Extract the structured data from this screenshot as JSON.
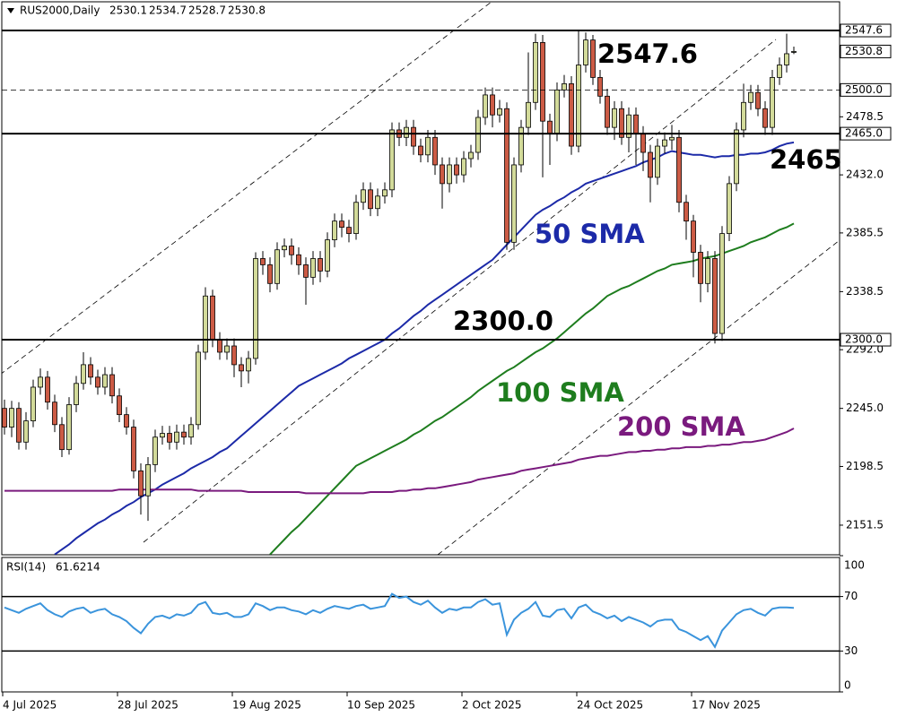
{
  "chart_data": [
    {
      "type": "candlestick",
      "title": "RUS2000,Daily",
      "categories": [
        "4 Jul 2025",
        null,
        null,
        null,
        null,
        null,
        null,
        null,
        null,
        null,
        null,
        null,
        null,
        null,
        null,
        null,
        "28 Jul 2025",
        null,
        null,
        null,
        null,
        null,
        null,
        null,
        null,
        null,
        null,
        null,
        null,
        null,
        null,
        null,
        "19 Aug 2025",
        null,
        null,
        null,
        null,
        null,
        null,
        null,
        null,
        null,
        null,
        null,
        null,
        null,
        null,
        null,
        "10 Sep 2025",
        null,
        null,
        null,
        null,
        null,
        null,
        null,
        null,
        null,
        null,
        null,
        null,
        null,
        null,
        null,
        "2 Oct 2025",
        null,
        null,
        null,
        null,
        null,
        null,
        null,
        null,
        null,
        null,
        null,
        null,
        null,
        null,
        null,
        "24 Oct 2025",
        null,
        null,
        null,
        null,
        null,
        null,
        null,
        null,
        null,
        null,
        null,
        null,
        null,
        null,
        null,
        "17 Nov 2025",
        null,
        null,
        null,
        null,
        null,
        null,
        null,
        null,
        null,
        null,
        null,
        null,
        null,
        null
      ],
      "open": [
        2245,
        2230,
        2245,
        2218,
        2235,
        2262,
        2270,
        2250,
        2232,
        2212,
        2248,
        2265,
        2280,
        2270,
        2262,
        2272,
        2255,
        2240,
        2230,
        2195,
        2175,
        2200,
        2222,
        2225,
        2218,
        2226,
        2222,
        2232,
        2290,
        2335,
        2300,
        2290,
        2295,
        2280,
        2275,
        2285,
        2365,
        2360,
        2345,
        2372,
        2375,
        2368,
        2360,
        2350,
        2365,
        2355,
        2380,
        2395,
        2390,
        2385,
        2410,
        2420,
        2405,
        2415,
        2420,
        2468,
        2462,
        2470,
        2455,
        2448,
        2462,
        2440,
        2425,
        2440,
        2432,
        2445,
        2450,
        2478,
        2496,
        2480,
        2485,
        2378,
        2440,
        2470,
        2490,
        2538,
        2475,
        2465,
        2500,
        2505,
        2455,
        2520,
        2540,
        2510,
        2495,
        2470,
        2485,
        2462,
        2480,
        2465,
        2450,
        2430,
        2455,
        2460,
        2462,
        2410,
        2395,
        2370,
        2345,
        2365,
        2305,
        2385,
        2425,
        2468,
        2490,
        2498,
        2485,
        2470,
        2510,
        2520,
        2530.1
      ],
      "high": [
        2252,
        2251,
        2250,
        2242,
        2268,
        2277,
        2275,
        2256,
        2238,
        2254,
        2271,
        2290,
        2286,
        2276,
        2278,
        2278,
        2261,
        2246,
        2236,
        2201,
        2206,
        2228,
        2231,
        2231,
        2232,
        2232,
        2238,
        2296,
        2342,
        2340,
        2306,
        2301,
        2301,
        2286,
        2291,
        2370,
        2371,
        2366,
        2378,
        2381,
        2381,
        2374,
        2366,
        2371,
        2371,
        2386,
        2401,
        2401,
        2396,
        2416,
        2426,
        2426,
        2421,
        2426,
        2474,
        2474,
        2476,
        2476,
        2461,
        2468,
        2468,
        2446,
        2446,
        2446,
        2451,
        2456,
        2484,
        2502,
        2502,
        2492,
        2490,
        2446,
        2476,
        2530,
        2545,
        2544,
        2481,
        2506,
        2512,
        2511,
        2547.6,
        2546,
        2544,
        2516,
        2501,
        2491,
        2491,
        2486,
        2486,
        2471,
        2456,
        2461,
        2466,
        2472,
        2468,
        2416,
        2400,
        2376,
        2371,
        2371,
        2391,
        2431,
        2474,
        2505,
        2504,
        2504,
        2491,
        2516,
        2526,
        2545,
        2534.7
      ],
      "low": [
        2224,
        2222,
        2212,
        2212,
        2230,
        2256,
        2244,
        2226,
        2206,
        2208,
        2242,
        2260,
        2264,
        2256,
        2256,
        2249,
        2234,
        2224,
        2189,
        2160,
        2155,
        2194,
        2216,
        2212,
        2212,
        2216,
        2216,
        2228,
        2284,
        2294,
        2284,
        2284,
        2270,
        2262,
        2265,
        2280,
        2352,
        2338,
        2340,
        2366,
        2360,
        2352,
        2328,
        2344,
        2346,
        2350,
        2374,
        2382,
        2378,
        2380,
        2404,
        2399,
        2399,
        2409,
        2414,
        2455,
        2455,
        2448,
        2442,
        2442,
        2432,
        2405,
        2418,
        2425,
        2426,
        2438,
        2444,
        2472,
        2470,
        2474,
        2372,
        2372,
        2434,
        2464,
        2484,
        2430,
        2440,
        2459,
        2494,
        2448,
        2450,
        2514,
        2504,
        2489,
        2464,
        2460,
        2456,
        2450,
        2440,
        2435,
        2410,
        2424,
        2449,
        2452,
        2402,
        2380,
        2350,
        2330,
        2338,
        2297,
        2299,
        2379,
        2419,
        2462,
        2484,
        2479,
        2464,
        2464,
        2504,
        2514,
        2528.7
      ],
      "close": [
        2230,
        2245,
        2218,
        2235,
        2262,
        2270,
        2250,
        2232,
        2212,
        2248,
        2265,
        2280,
        2270,
        2262,
        2272,
        2255,
        2240,
        2230,
        2195,
        2175,
        2200,
        2222,
        2225,
        2218,
        2226,
        2222,
        2232,
        2290,
        2335,
        2300,
        2290,
        2295,
        2280,
        2275,
        2285,
        2365,
        2360,
        2345,
        2372,
        2375,
        2368,
        2360,
        2350,
        2365,
        2355,
        2380,
        2395,
        2390,
        2385,
        2410,
        2420,
        2405,
        2415,
        2420,
        2468,
        2462,
        2470,
        2455,
        2448,
        2462,
        2440,
        2425,
        2440,
        2432,
        2445,
        2450,
        2478,
        2496,
        2480,
        2485,
        2378,
        2440,
        2470,
        2490,
        2538,
        2475,
        2465,
        2500,
        2505,
        2455,
        2520,
        2540,
        2510,
        2495,
        2470,
        2485,
        2462,
        2480,
        2465,
        2450,
        2430,
        2455,
        2460,
        2462,
        2410,
        2395,
        2370,
        2345,
        2365,
        2305,
        2385,
        2425,
        2468,
        2490,
        2498,
        2485,
        2470,
        2510,
        2520,
        2529,
        2530.8
      ],
      "up_color": "#d3db9a",
      "down_color": "#cc5b45",
      "series": [
        {
          "name": "50 SMA",
          "color": "#1c2aa8",
          "values": [
            null,
            null,
            null,
            null,
            null,
            null,
            null,
            2128,
            2132,
            2136,
            2141,
            2145,
            2149,
            2153,
            2156,
            2160,
            2163,
            2167,
            2170,
            2174,
            2177,
            2180,
            2184,
            2187,
            2190,
            2193,
            2197,
            2200,
            2203,
            2206,
            2210,
            2213,
            2218,
            2223,
            2228,
            2233,
            2238,
            2243,
            2248,
            2253,
            2258,
            2263,
            2266,
            2269,
            2272,
            2275,
            2278,
            2281,
            2285,
            2288,
            2291,
            2294,
            2297,
            2300,
            2305,
            2309,
            2314,
            2319,
            2323,
            2328,
            2332,
            2336,
            2340,
            2344,
            2348,
            2352,
            2356,
            2360,
            2364,
            2370,
            2376,
            2382,
            2388,
            2394,
            2400,
            2404,
            2407,
            2411,
            2414,
            2418,
            2421,
            2425,
            2427,
            2429,
            2431,
            2433,
            2435,
            2437,
            2439,
            2442,
            2444,
            2446,
            2449,
            2451,
            2450,
            2449,
            2448,
            2448,
            2447,
            2446,
            2447,
            2447,
            2448,
            2448,
            2449,
            2449,
            2450,
            2452,
            2455,
            2457,
            2458
          ]
        },
        {
          "name": "100 SMA",
          "color": "#1e7d1e",
          "values": [
            null,
            null,
            null,
            null,
            null,
            null,
            null,
            null,
            null,
            null,
            null,
            null,
            null,
            null,
            null,
            null,
            null,
            null,
            null,
            null,
            null,
            null,
            null,
            null,
            null,
            null,
            null,
            null,
            null,
            null,
            null,
            null,
            null,
            null,
            null,
            null,
            null,
            2128,
            2134,
            2140,
            2146,
            2151,
            2157,
            2163,
            2169,
            2175,
            2181,
            2187,
            2193,
            2199,
            2202,
            2205,
            2208,
            2211,
            2214,
            2217,
            2220,
            2224,
            2227,
            2231,
            2235,
            2238,
            2242,
            2246,
            2250,
            2254,
            2259,
            2263,
            2267,
            2271,
            2275,
            2278,
            2282,
            2286,
            2290,
            2293,
            2297,
            2301,
            2306,
            2311,
            2316,
            2321,
            2325,
            2330,
            2335,
            2338,
            2341,
            2343,
            2346,
            2349,
            2352,
            2355,
            2357,
            2360,
            2361,
            2362,
            2363,
            2365,
            2366,
            2367,
            2369,
            2371,
            2373,
            2375,
            2378,
            2380,
            2382,
            2385,
            2388,
            2390,
            2393
          ]
        },
        {
          "name": "200 SMA",
          "color": "#7a1a7e",
          "values": [
            2179,
            2179,
            2179,
            2179,
            2179,
            2179,
            2179,
            2179,
            2179,
            2179,
            2179,
            2179,
            2179,
            2179,
            2179,
            2179,
            2180,
            2180,
            2180,
            2180,
            2180,
            2180,
            2180,
            2180,
            2180,
            2180,
            2180,
            2179,
            2179,
            2179,
            2179,
            2179,
            2179,
            2179,
            2178,
            2178,
            2178,
            2178,
            2178,
            2178,
            2178,
            2178,
            2177,
            2177,
            2177,
            2177,
            2177,
            2177,
            2177,
            2177,
            2177,
            2178,
            2178,
            2178,
            2178,
            2179,
            2179,
            2180,
            2180,
            2181,
            2181,
            2182,
            2183,
            2184,
            2185,
            2186,
            2188,
            2189,
            2190,
            2191,
            2192,
            2193,
            2195,
            2196,
            2197,
            2198,
            2199,
            2200,
            2201,
            2202,
            2204,
            2205,
            2206,
            2207,
            2207,
            2208,
            2209,
            2210,
            2210,
            2211,
            2211,
            2212,
            2212,
            2213,
            2213,
            2214,
            2214,
            2214,
            2215,
            2215,
            2216,
            2216,
            2217,
            2218,
            2218,
            2219,
            2220,
            2222,
            2224,
            2226,
            2229
          ]
        }
      ],
      "ylim": [
        2128.5,
        2559.1
      ],
      "yticks": [
        2478.5,
        {
          "value": 2432,
          "label": "2432.0"
        },
        2385.5,
        2338.5,
        {
          "value": 2292,
          "label": "2292.0"
        },
        {
          "value": 2245,
          "label": "2245.0"
        },
        2198.5,
        2151.5
      ],
      "levels": [
        2547.6,
        {
          "value": 2500,
          "label": "2500.0"
        },
        {
          "value": 2465,
          "label": "2465.0"
        },
        {
          "value": 2300,
          "label": "2300.0"
        }
      ],
      "level_styles": [
        "solid",
        "dashed",
        "solid",
        "solid"
      ],
      "annotations": [
        "2547.6",
        "2465",
        "2300.0"
      ]
    },
    {
      "type": "line",
      "title": "RSI(14)",
      "color": "#3a94dc",
      "values": [
        62,
        60,
        58,
        61,
        63,
        65,
        60,
        57,
        55,
        59,
        61,
        62,
        58,
        60,
        61,
        57,
        55,
        52,
        47,
        43,
        50,
        55,
        56,
        54,
        57,
        56,
        58,
        64,
        66,
        58,
        57,
        58,
        55,
        55,
        57,
        65,
        63,
        60,
        62,
        62,
        60,
        59,
        57,
        60,
        58,
        61,
        63,
        62,
        61,
        63,
        64,
        61,
        62,
        63,
        72,
        69,
        70,
        66,
        64,
        67,
        62,
        58,
        61,
        60,
        62,
        62,
        66,
        68,
        64,
        65,
        42,
        53,
        58,
        61,
        66,
        56,
        55,
        60,
        61,
        54,
        62,
        64,
        59,
        57,
        54,
        56,
        52,
        55,
        53,
        51,
        48,
        52,
        53,
        53,
        46,
        44,
        41,
        38,
        41,
        33,
        45,
        51,
        57,
        60,
        61,
        58,
        56,
        61,
        62,
        62,
        61.6214
      ],
      "ylim": [
        0,
        100
      ],
      "yticks": [
        100,
        70,
        30,
        0
      ],
      "levels": [
        70,
        30
      ]
    }
  ]
}
